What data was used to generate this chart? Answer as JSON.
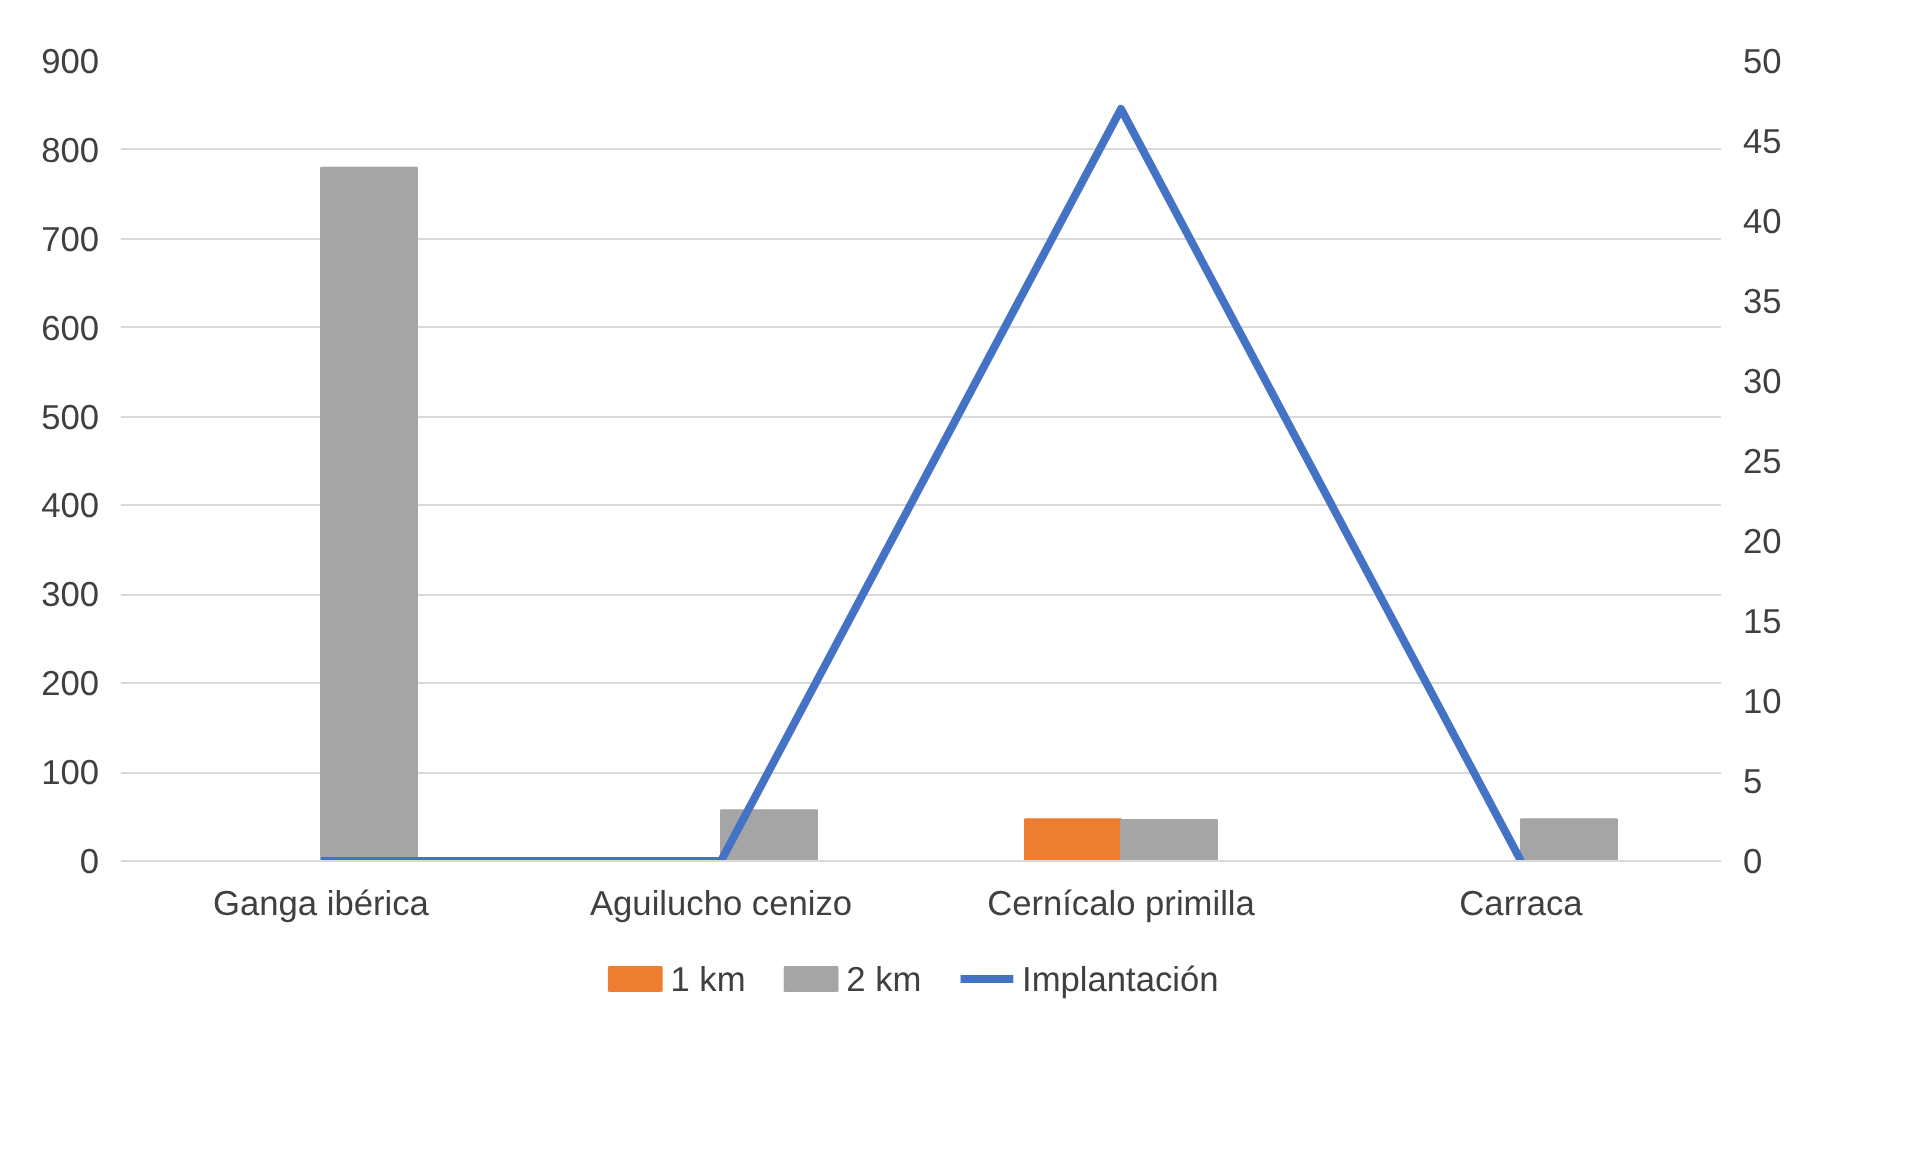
{
  "chart_data": {
    "type": "bar",
    "categories": [
      "Ganga ibérica",
      "Aguilucho cenizo",
      "Cernícalo primilla",
      "Carraca"
    ],
    "series": [
      {
        "name": "1 km",
        "color": "#ed7d31",
        "values": [
          0,
          0,
          47,
          0
        ]
      },
      {
        "name": "2 km",
        "color": "#a5a5a5",
        "values": [
          780,
          57,
          46,
          47
        ]
      },
      {
        "name": "Implantación",
        "color": "#4472c4",
        "type": "line",
        "axis": "y2",
        "values": [
          0,
          0,
          47,
          0
        ]
      }
    ],
    "ylim": [
      0,
      900
    ],
    "yticks": [
      0,
      100,
      200,
      300,
      400,
      500,
      600,
      700,
      800,
      900
    ],
    "y2lim": [
      0,
      50
    ],
    "y2ticks": [
      0,
      5,
      10,
      15,
      20,
      25,
      30,
      35,
      40,
      45,
      50
    ],
    "grid": "y",
    "legend": "bottom"
  }
}
